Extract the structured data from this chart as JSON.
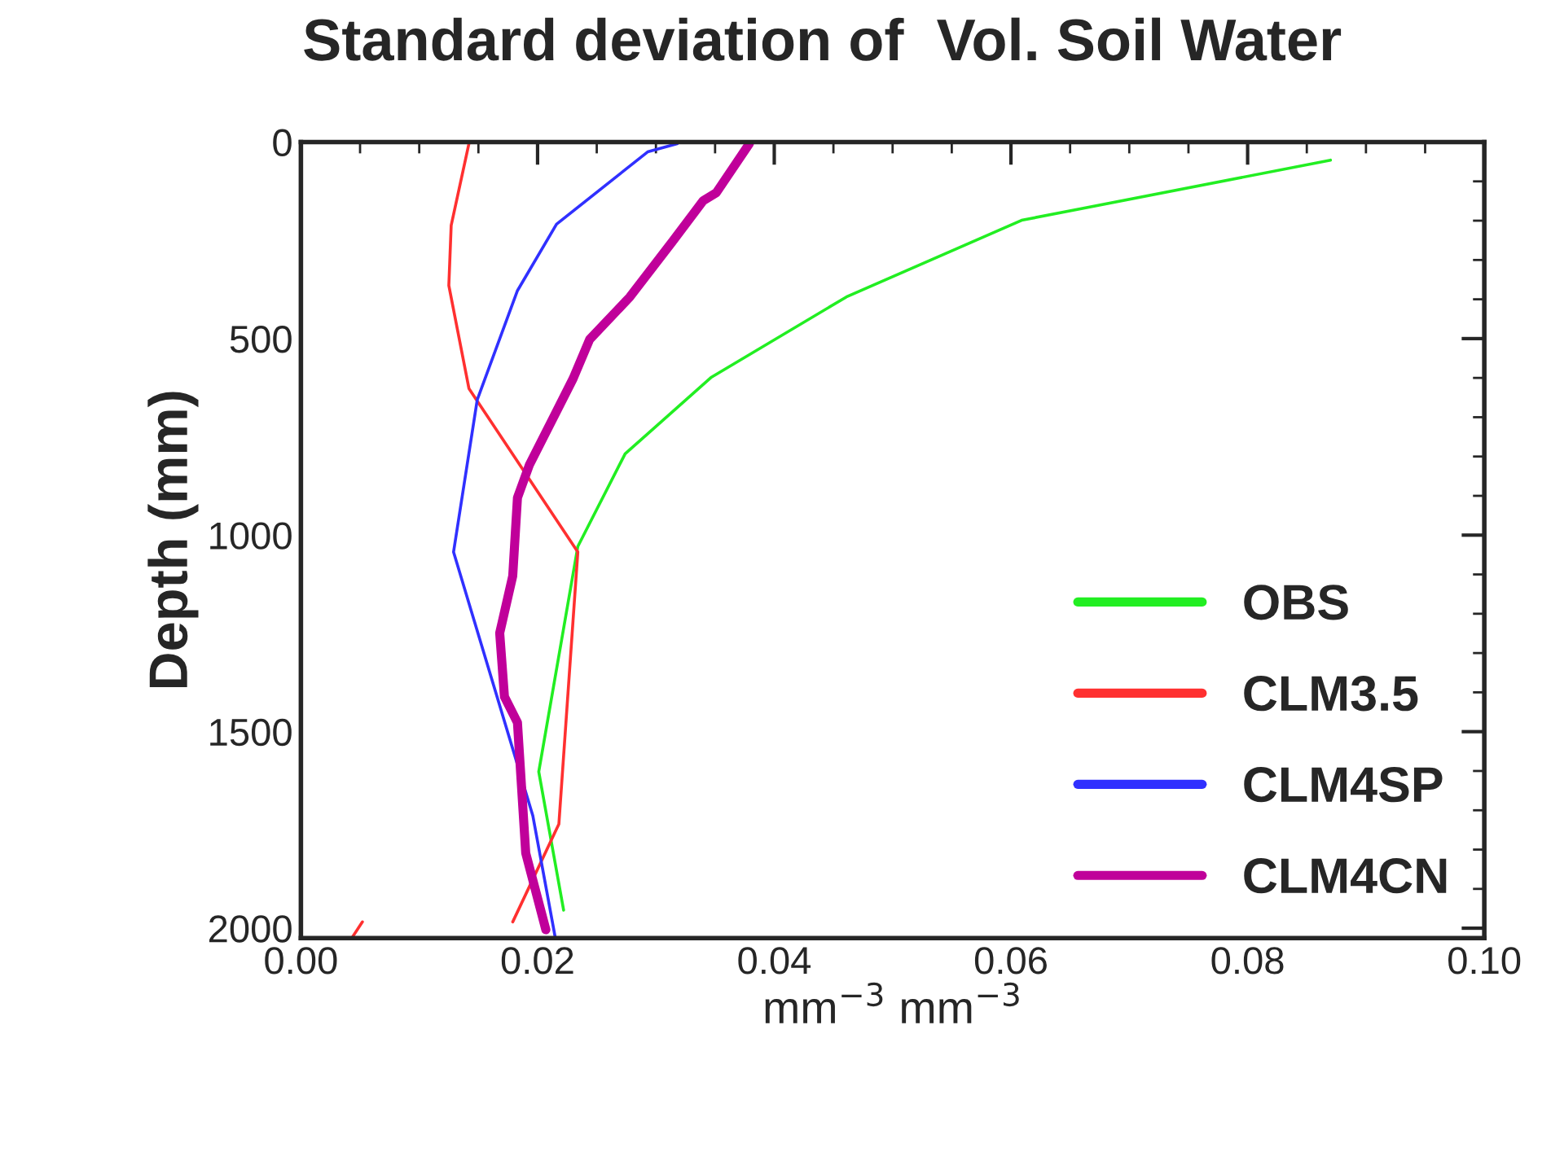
{
  "chart_data": {
    "type": "line",
    "title": "Standard deviation of  Vol. Soil Water",
    "xlabel": "mm$^{−3}$ mm$^{−3}$",
    "ylabel": "Depth (mm)",
    "series": [
      {
        "name": "OBS",
        "color": "#22ee22",
        "x": [
          0.087,
          0.0609,
          0.0461,
          0.0347,
          0.0274,
          0.0234,
          0.0201,
          0.0222
        ],
        "values": [
          46,
          199,
          394,
          598,
          793,
          1029,
          1602,
          1954
        ]
      },
      {
        "name": "CLM3.5",
        "color": "#ff3030",
        "x": [
          0.0142,
          0.0127,
          0.0125,
          0.0142,
          0.0234,
          0.0218,
          0.0179,
          null,
          0.0052,
          0.0043
        ],
        "values": [
          4,
          212,
          365,
          627,
          1043,
          1735,
          1984,
          null,
          1984,
          2025
        ]
      },
      {
        "name": "CLM4SP",
        "color": "#3030ff",
        "x": [
          0.0318,
          0.0293,
          0.0216,
          0.0183,
          0.0149,
          0.0129,
          0.0196,
          0.0215
        ],
        "values": [
          4,
          25,
          209,
          378,
          656,
          1043,
          1714,
          2025
        ]
      },
      {
        "name": "CLM4CN",
        "color": "#c0009a",
        "x": [
          0.0379,
          0.0351,
          0.034,
          0.0314,
          0.0278,
          0.0244,
          0.023,
          0.0193,
          0.0183,
          0.0179,
          0.0168,
          0.0172,
          0.0183,
          0.019,
          0.0207
        ],
        "values": [
          4,
          129,
          149,
          253,
          394,
          502,
          602,
          822,
          905,
          1104,
          1249,
          1411,
          1477,
          1809,
          2004
        ]
      }
    ],
    "xlim": [
      0,
      0.1
    ],
    "xticks": [
      {
        "value": 0,
        "label": "0.00"
      },
      {
        "value": 0.02,
        "label": "0.02"
      },
      {
        "value": 0.04,
        "label": "0.04"
      },
      {
        "value": 0.06,
        "label": "0.06"
      },
      {
        "value": 0.08,
        "label": "0.08"
      },
      {
        "value": 0.1,
        "label": "0.10"
      }
    ],
    "ylim": [
      2025,
      0
    ],
    "yticks": [
      0,
      500,
      1000,
      1500,
      2000
    ],
    "legend": "bottom right",
    "grid": false
  }
}
